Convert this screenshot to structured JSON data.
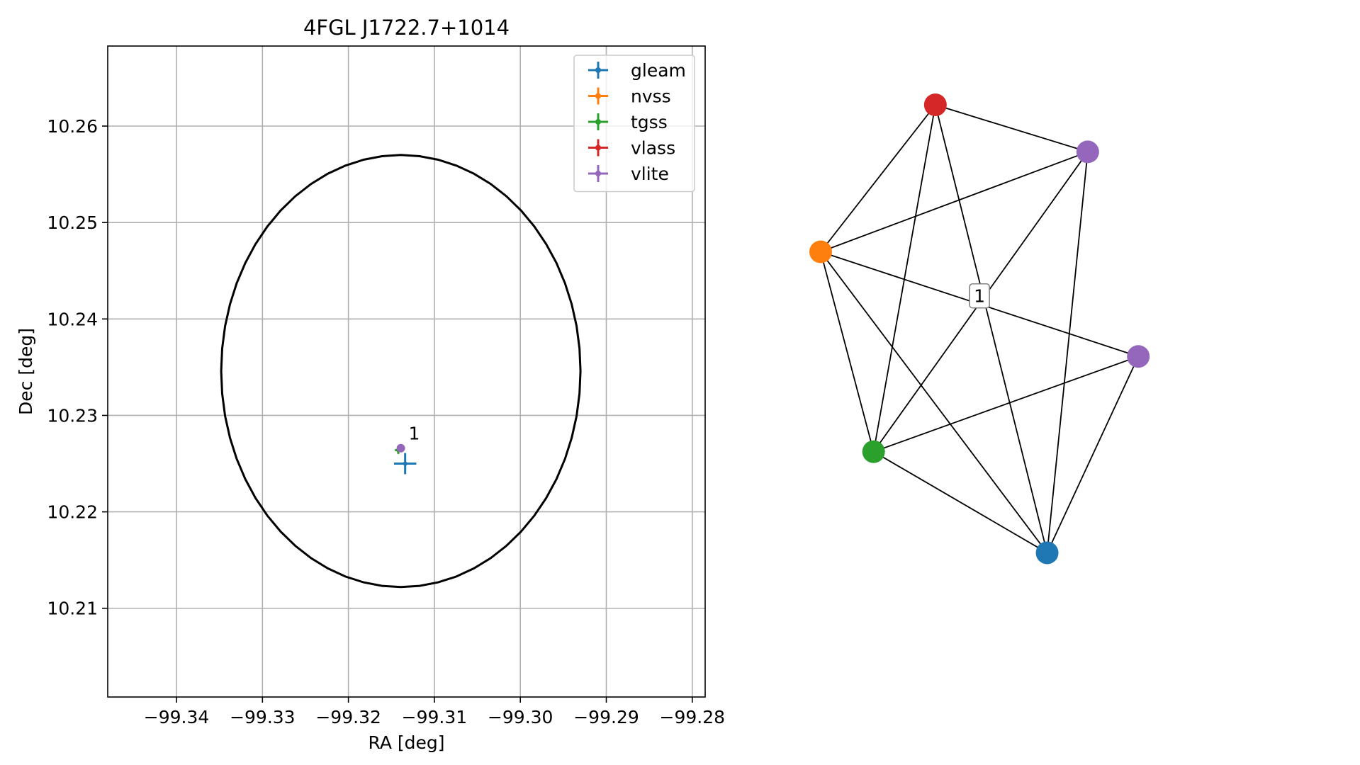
{
  "chart_data": [
    {
      "type": "scatter",
      "title": "4FGL J1722.7+1014",
      "xlabel": "RA [deg]",
      "ylabel": "Dec [deg]",
      "xlim": [
        -99.348,
        -99.2785
      ],
      "ylim": [
        10.2008,
        10.2683
      ],
      "grid": true,
      "xticks": [
        -99.34,
        -99.33,
        -99.32,
        -99.31,
        -99.3,
        -99.29,
        -99.28
      ],
      "xtick_labels": [
        "−99.34",
        "−99.33",
        "−99.32",
        "−99.31",
        "−99.30",
        "−99.29",
        "−99.28"
      ],
      "yticks": [
        10.21,
        10.22,
        10.23,
        10.24,
        10.25,
        10.26
      ],
      "ytick_labels": [
        "10.21",
        "10.22",
        "10.23",
        "10.24",
        "10.25",
        "10.26"
      ],
      "legend_placement": "upper right",
      "series": [
        {
          "name": "gleam",
          "color": "#1f77b4",
          "x": -99.3134,
          "y": 10.225,
          "xerr": 0.0013,
          "yerr": 0.0011,
          "marker_radius": 3
        },
        {
          "name": "nvss",
          "color": "#ff7f0e",
          "x": -99.3141,
          "y": 10.2265,
          "xerr": 0.0003,
          "yerr": 0.0003,
          "marker_radius": 3
        },
        {
          "name": "tgss",
          "color": "#2ca02c",
          "x": -99.3142,
          "y": 10.2264,
          "xerr": 0.0004,
          "yerr": 0.0004,
          "marker_radius": 3
        },
        {
          "name": "vlass",
          "color": "#d62728",
          "x": -99.3138,
          "y": 10.2266,
          "xerr": 0.0001,
          "yerr": 0.0001,
          "marker_radius": 3
        },
        {
          "name": "vlite",
          "color": "#9467bd",
          "x": -99.3139,
          "y": 10.2266,
          "xerr": 0.0002,
          "yerr": 0.0002,
          "marker_radius": 6
        }
      ],
      "annotation": {
        "text": "1",
        "x": -99.313,
        "y": 10.2275
      },
      "ellipse": {
        "center_x": -99.3139,
        "center_y": 10.2346,
        "semi_x": 0.0209,
        "semi_y": 0.0224,
        "color": "#000000"
      }
    },
    {
      "type": "network",
      "nodes": [
        {
          "id": "red",
          "color": "#d62728",
          "x": 0.195,
          "y": 0.1
        },
        {
          "id": "purple-top",
          "color": "#9467bd",
          "x": 0.454,
          "y": 0.18
        },
        {
          "id": "orange",
          "color": "#ff7f0e",
          "x": 0.0,
          "y": 0.35
        },
        {
          "id": "purple-right",
          "color": "#9467bd",
          "x": 0.54,
          "y": 0.528
        },
        {
          "id": "green",
          "color": "#2ca02c",
          "x": 0.09,
          "y": 0.69
        },
        {
          "id": "blue",
          "color": "#1f77b4",
          "x": 0.385,
          "y": 0.862
        }
      ],
      "edges": [
        [
          "red",
          "purple-top"
        ],
        [
          "red",
          "orange"
        ],
        [
          "red",
          "green"
        ],
        [
          "red",
          "blue"
        ],
        [
          "purple-top",
          "orange"
        ],
        [
          "purple-top",
          "green"
        ],
        [
          "purple-top",
          "blue"
        ],
        [
          "orange",
          "purple-right"
        ],
        [
          "orange",
          "green"
        ],
        [
          "orange",
          "blue"
        ],
        [
          "purple-right",
          "green"
        ],
        [
          "purple-right",
          "blue"
        ],
        [
          "green",
          "blue"
        ]
      ],
      "edge_label": {
        "text": "1",
        "x": 0.27,
        "y": 0.425
      }
    }
  ]
}
